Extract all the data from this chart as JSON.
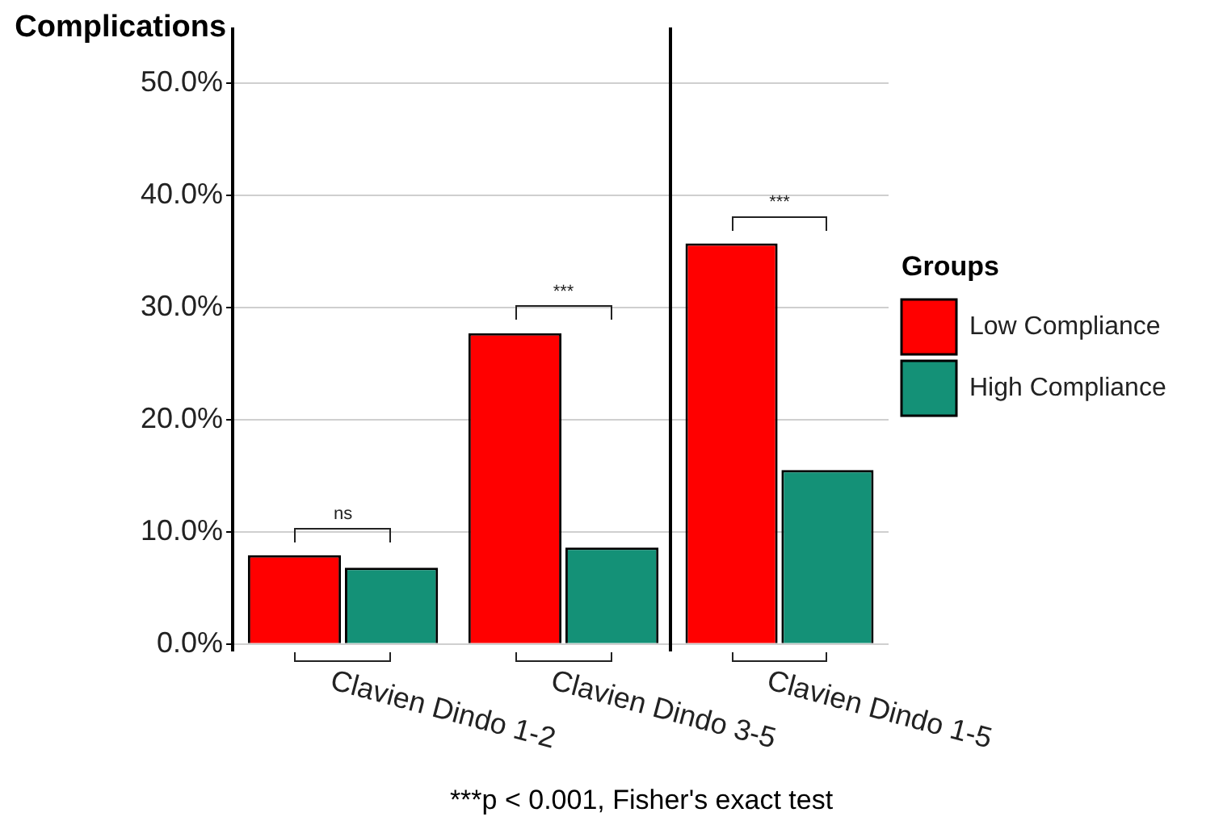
{
  "chart_data": [
    {
      "type": "bar",
      "ylabel": "Complications",
      "categories": [
        "Clavien Dindo 1-2",
        "Clavien Dindo 3-5"
      ],
      "series": [
        {
          "color": "#ff0000",
          "values": [
            7.9,
            27.7
          ]
        },
        {
          "color": "#149177",
          "values": [
            6.8,
            8.6
          ]
        }
      ],
      "ylim": [
        -0.6,
        54.8
      ],
      "yticks": [
        {
          "value": 0,
          "label": "0.0%"
        },
        {
          "value": 10,
          "label": "10.0%"
        },
        {
          "value": 20,
          "label": "20.0%"
        },
        {
          "value": 30,
          "label": "30.0%"
        },
        {
          "value": 40,
          "label": "40.0%"
        },
        {
          "value": 50,
          "label": "50.0%"
        }
      ],
      "grid": "y",
      "annotations": [
        "ns",
        "***"
      ]
    },
    {
      "type": "bar",
      "categories": [
        "Clavien Dindo 1-5"
      ],
      "series": [
        {
          "name": "Low Compliance",
          "color": "#ff0000",
          "values": [
            35.7
          ]
        },
        {
          "name": "High Compliance",
          "color": "#149177",
          "values": [
            15.5
          ]
        }
      ],
      "ylim": [
        -0.6,
        54.8
      ],
      "yticks": [
        0,
        10,
        20,
        30,
        40,
        50
      ],
      "tick_labels": "x",
      "grid": "y",
      "legend": "right",
      "legend_title": "Groups",
      "annotations": [
        "***",
        "***p < 0.001, Fisher's exact test"
      ]
    }
  ]
}
